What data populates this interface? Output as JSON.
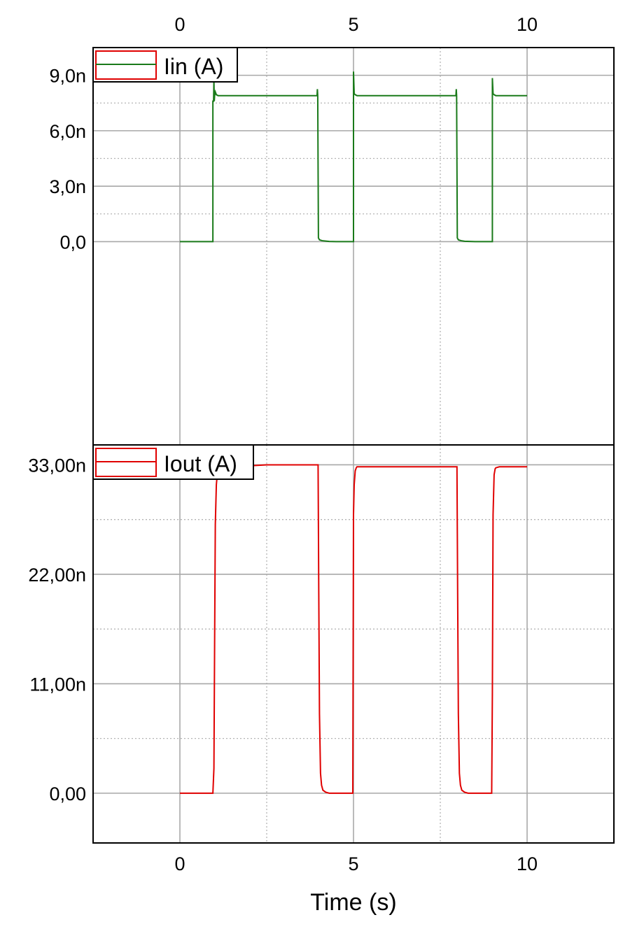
{
  "chart_data": [
    {
      "type": "line",
      "xlim": [
        -2.5,
        12.5
      ],
      "ylim": [
        -1.1e-08,
        1.05e-08
      ],
      "x_ticks": [
        0,
        5,
        10
      ],
      "x_tick_labels": [
        "0",
        "5",
        "10"
      ],
      "x_tick_labels_position": "top",
      "y_ticks": [
        0,
        3e-09,
        6e-09,
        9e-09
      ],
      "y_tick_labels": [
        "0,0",
        "3,0n",
        "6,0n",
        "9,0n"
      ],
      "grid": true,
      "legend_position": "top-left",
      "series": [
        {
          "name": "Iin (A)",
          "color": "#1a7a1a",
          "x": [
            0,
            0.95,
            0.95,
            0.97,
            0.98,
            0.99,
            1.0,
            1.02,
            1.05,
            1.1,
            3.95,
            3.96,
            3.97,
            3.99,
            4.02,
            4.05,
            4.1,
            4.2,
            4.3,
            4.5,
            4.98,
            5.0,
            5.0,
            5.02,
            5.05,
            5.1,
            7.95,
            7.96,
            7.97,
            7.99,
            8.02,
            8.05,
            8.1,
            8.2,
            8.5,
            8.98,
            9.0,
            9.0,
            9.02,
            9.05,
            9.1,
            10.0
          ],
          "y": [
            0,
            0,
            7.6e-09,
            7.6e-09,
            8.8e-09,
            7.6e-09,
            7.9e-09,
            8.1e-09,
            7.95e-09,
            7.9e-09,
            7.9e-09,
            8.25e-09,
            7.9e-09,
            2e-10,
            1e-10,
            8e-11,
            5e-11,
            3e-11,
            1e-11,
            0,
            0,
            0,
            9.2e-09,
            8e-09,
            7.95e-09,
            7.9e-09,
            7.9e-09,
            8.25e-09,
            7.9e-09,
            2e-10,
            1e-10,
            8e-11,
            5e-11,
            2e-11,
            0,
            0,
            0,
            8.85e-09,
            8e-09,
            7.95e-09,
            7.9e-09,
            7.9e-09
          ]
        }
      ]
    },
    {
      "type": "line",
      "xlim": [
        -2.5,
        12.5
      ],
      "ylim": [
        -5e-09,
        3.5e-08
      ],
      "x_ticks": [
        0,
        5,
        10
      ],
      "x_tick_labels": [
        "0",
        "5",
        "10"
      ],
      "xlabel": "Time (s)",
      "y_ticks": [
        0,
        1.1e-08,
        2.2e-08,
        3.3e-08
      ],
      "y_tick_labels": [
        "0,00",
        "11,00n",
        "22,00n",
        "33,00n"
      ],
      "grid": true,
      "legend_position": "top-left",
      "series": [
        {
          "name": "Iout (A)",
          "color": "#e00000",
          "x": [
            0,
            0.95,
            0.98,
            1.0,
            1.02,
            1.05,
            1.08,
            1.1,
            1.2,
            1.5,
            2.0,
            2.5,
            3.98,
            4.0,
            4.02,
            4.05,
            4.08,
            4.12,
            4.2,
            4.3,
            4.5,
            4.98,
            5.0,
            5.02,
            5.05,
            5.08,
            5.1,
            5.2,
            5.5,
            6.0,
            7.98,
            8.0,
            8.02,
            8.05,
            8.08,
            8.12,
            8.2,
            8.3,
            8.5,
            8.98,
            9.0,
            9.02,
            9.05,
            9.08,
            9.1,
            9.2,
            10.0
          ],
          "y": [
            0,
            0,
            2.5e-09,
            1.5e-08,
            2.7e-08,
            3.1e-08,
            3.22e-08,
            3.26e-08,
            3.27e-08,
            3.28e-08,
            3.29e-08,
            3.3e-08,
            3.3e-08,
            2e-08,
            8e-09,
            2e-09,
            8e-10,
            3e-10,
            1e-10,
            0,
            0,
            0,
            2.8e-08,
            3.1e-08,
            3.24e-08,
            3.27e-08,
            3.28e-08,
            3.28e-08,
            3.28e-08,
            3.28e-08,
            3.28e-08,
            2e-08,
            8e-09,
            2e-09,
            8e-10,
            3e-10,
            1e-10,
            0,
            0,
            0,
            1e-08,
            2.8e-08,
            3.2e-08,
            3.26e-08,
            3.27e-08,
            3.28e-08,
            3.28e-08
          ]
        }
      ]
    }
  ]
}
